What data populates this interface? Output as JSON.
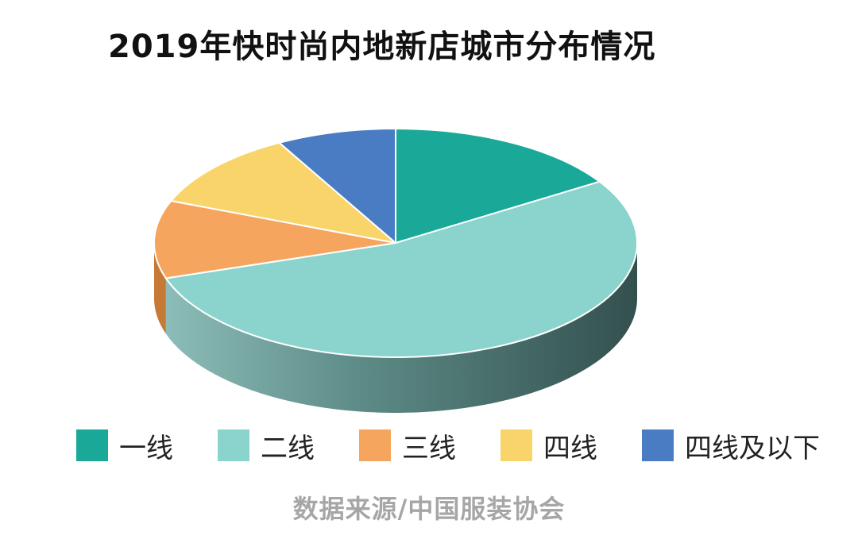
{
  "chart_data": {
    "type": "pie",
    "style": "3d",
    "title": "2019年快时尚内地新店城市分布情况",
    "categories": [
      "一线",
      "二线",
      "三线",
      "四线",
      "四线及以下"
    ],
    "values": [
      16,
      54,
      11,
      11,
      8
    ],
    "colors": [
      "#1aa898",
      "#8bd3cd",
      "#f6a55f",
      "#f9d46a",
      "#4a7cc4"
    ],
    "side_colors": [
      "#157a6f",
      "#3f5f5c",
      "#c77a36",
      "#c7a248",
      "#345c94"
    ],
    "legend": {
      "position": "bottom"
    }
  },
  "source": "数据来源/中国服装协会"
}
